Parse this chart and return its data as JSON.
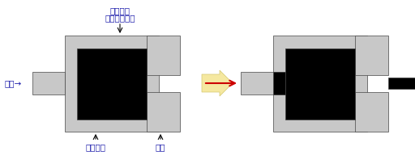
{
  "bg_color": "#ffffff",
  "gray": "#c8c8c8",
  "black": "#000000",
  "arrow_color": "#cc0000",
  "label_color": "#1a1aaa",
  "cream": "#f5e8a0",
  "cream_edge": "#d4c870",
  "label_ram": "ラム→",
  "label_billet_1": "ビレット",
  "label_billet_2": "（被加工材）",
  "label_container": "コンテナ",
  "label_die": "ダイ",
  "fig_width": 5.12,
  "fig_height": 2.08,
  "dpi": 100
}
